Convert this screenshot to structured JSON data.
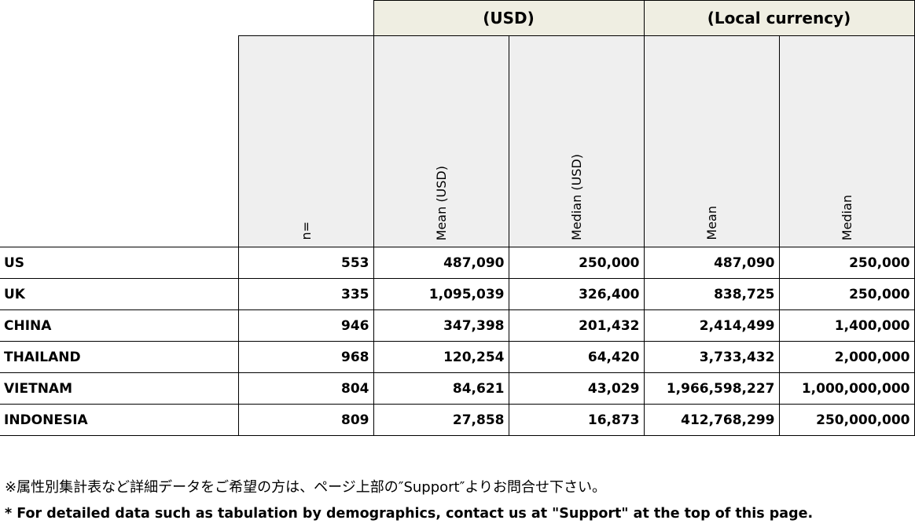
{
  "table": {
    "group_headers": [
      "(USD)",
      "(Local currency)"
    ],
    "columns": [
      "n=",
      "Mean (USD)",
      "Median (USD)",
      "Mean",
      "Median"
    ],
    "rows": [
      {
        "country": "US",
        "values": [
          "553",
          "487,090",
          "250,000",
          "487,090",
          "250,000"
        ]
      },
      {
        "country": "UK",
        "values": [
          "335",
          "1,095,039",
          "326,400",
          "838,725",
          "250,000"
        ]
      },
      {
        "country": "CHINA",
        "values": [
          "946",
          "347,398",
          "201,432",
          "2,414,499",
          "1,400,000"
        ]
      },
      {
        "country": "THAILAND",
        "values": [
          "968",
          "120,254",
          "64,420",
          "3,733,432",
          "2,000,000"
        ]
      },
      {
        "country": "VIETNAM",
        "values": [
          "804",
          "84,621",
          "43,029",
          "1,966,598,227",
          "1,000,000,000"
        ]
      },
      {
        "country": "INDONESIA",
        "values": [
          "809",
          "27,858",
          "16,873",
          "412,768,299",
          "250,000,000"
        ]
      }
    ]
  },
  "notes": {
    "japanese": "※属性別集計表など詳細データをご希望の方は、ページ上部の″Support″よりお問合せ下さい。",
    "english": "* For detailed data such as tabulation by demographics, contact us at \"Support\" at the top of this page."
  },
  "colors": {
    "group_header_bg": "#efeee2",
    "column_header_bg": "#efefef"
  }
}
